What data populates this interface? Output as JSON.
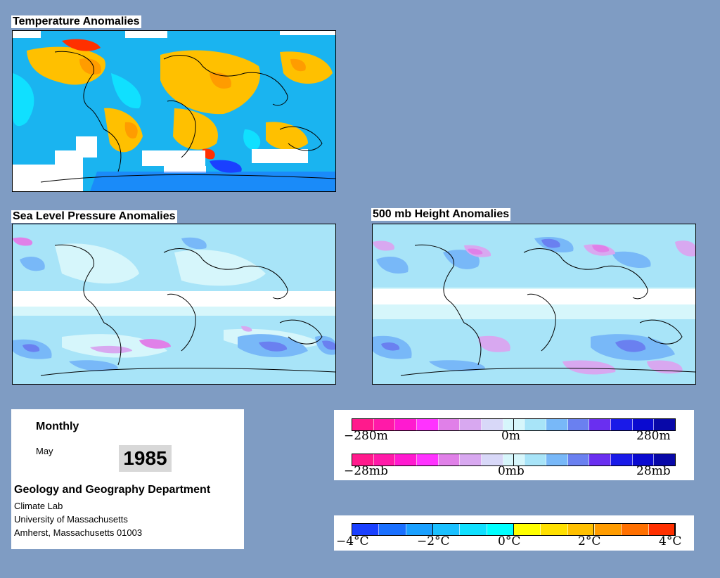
{
  "maps": {
    "temperature": {
      "title": "Temperature Anomalies"
    },
    "slp": {
      "title": "Sea Level Pressure Anomalies"
    },
    "height500": {
      "title": "500 mb Height Anomalies"
    }
  },
  "info": {
    "period": "Monthly",
    "month": "May",
    "year": "1985",
    "department": "Geology and Geography Department",
    "lab": "Climate Lab",
    "university": "University of Massachusetts",
    "address": "Amherst, Massachusetts 01003"
  },
  "legends": {
    "height": {
      "min": "−280m",
      "mid": "0m",
      "max": "280m"
    },
    "pressure": {
      "min": "−28mb",
      "mid": "0mb",
      "max": "28mb"
    },
    "temperature": {
      "labels": [
        "−4°C",
        "−2°C",
        "0°C",
        "2°C",
        "4°C"
      ]
    }
  },
  "colors": {
    "background": "#7f9cc3",
    "pressure_scale": [
      "#ff1a8c",
      "#ff1aa8",
      "#ff1ad0",
      "#ff33ff",
      "#e080e8",
      "#d8a8f0",
      "#d8d8f8",
      "#d6f6fb",
      "#a8e4f8",
      "#78b8f8",
      "#6a80f0",
      "#6a2ff0",
      "#1a1ae8",
      "#0a0ad0",
      "#0808a8"
    ],
    "temperature_scale": [
      "#1a40ff",
      "#1a70ff",
      "#1aa0ff",
      "#1ac0ff",
      "#10e0ff",
      "#00ffff",
      "#ffff00",
      "#ffe000",
      "#ffc000",
      "#ff9c00",
      "#ff7000",
      "#ff3000"
    ]
  }
}
